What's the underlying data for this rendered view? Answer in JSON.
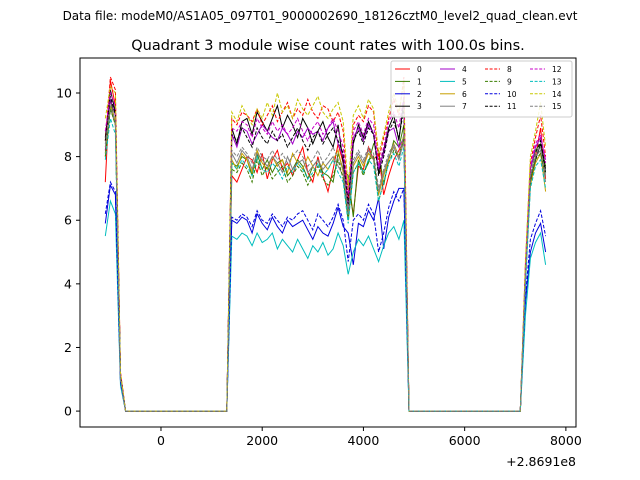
{
  "chart_data": {
    "type": "line",
    "suptitle": "Data file: modeM0/AS1A05_097T01_9000002690_18126cztM0_level2_quad_clean.evt",
    "title": "Quadrant 3 module wise count rates with 100.0s bins.",
    "xlabel": "",
    "ylabel": "",
    "x_offset_label": "+2.8691e8",
    "xlim": [
      -1600,
      8200
    ],
    "ylim": [
      -0.5,
      11.1
    ],
    "xticks": [
      0,
      2000,
      4000,
      6000,
      8000
    ],
    "xtick_labels": [
      "0",
      "2000",
      "4000",
      "6000",
      "8000"
    ],
    "yticks": [
      0,
      2,
      4,
      6,
      8,
      10
    ],
    "ytick_labels": [
      "0",
      "2",
      "4",
      "6",
      "8",
      "10"
    ],
    "legend_loc": "upper right",
    "segments": [
      {
        "x_start": -1100,
        "x_end": -700,
        "n": 5
      },
      {
        "x_start": 1300,
        "x_end": 4900,
        "n": 37
      },
      {
        "x_start": 7100,
        "x_end": 7600,
        "n": 6
      }
    ],
    "gap_from": 1300,
    "gap_to": 4900,
    "series": [
      {
        "name": "0",
        "color": "#ff0000",
        "dash": "solid",
        "peak": [
          7.2,
          10.4,
          9.6,
          1.2,
          0.0
        ],
        "body": [
          0.0,
          7.4,
          7.2,
          7.6,
          8.0,
          7.9,
          7.5,
          8.1,
          7.3,
          7.9,
          8.2,
          7.6,
          7.8,
          7.4,
          7.9,
          8.3,
          7.5,
          7.2,
          8.0,
          7.4,
          6.9,
          7.6,
          8.4,
          7.8,
          7.1,
          6.2,
          7.7,
          7.6,
          8.3,
          7.9,
          8.1,
          6.8,
          7.4,
          7.9,
          8.2,
          8.5,
          0.0
        ],
        "tail": [
          0.0,
          4.2,
          7.2,
          8.0,
          8.9,
          7.3
        ]
      },
      {
        "name": "1",
        "color": "#3a7d00",
        "dash": "solid",
        "peak": [
          8.1,
          9.8,
          9.0,
          1.1,
          0.0
        ],
        "body": [
          0.0,
          7.8,
          7.7,
          8.0,
          7.9,
          7.4,
          8.1,
          7.6,
          7.9,
          7.5,
          7.8,
          7.9,
          7.4,
          7.6,
          7.9,
          7.7,
          7.3,
          7.7,
          7.9,
          7.5,
          7.4,
          7.2,
          8.1,
          7.6,
          7.4,
          6.1,
          7.9,
          7.5,
          7.8,
          8.4,
          8.2,
          7.1,
          7.9,
          8.5,
          8.3,
          9.0,
          0.0
        ],
        "tail": [
          0.0,
          4.4,
          7.6,
          8.2,
          8.4,
          7.7
        ]
      },
      {
        "name": "2",
        "color": "#0000dd",
        "dash": "solid",
        "peak": [
          5.9,
          7.1,
          6.8,
          0.9,
          0.0
        ],
        "body": [
          0.0,
          6.0,
          5.9,
          6.1,
          6.0,
          5.6,
          6.2,
          5.9,
          5.7,
          6.1,
          5.8,
          5.6,
          6.0,
          5.8,
          5.9,
          6.0,
          5.7,
          5.4,
          5.8,
          5.6,
          5.5,
          5.9,
          6.4,
          5.8,
          5.6,
          4.6,
          5.9,
          5.8,
          6.3,
          6.0,
          6.7,
          5.1,
          6.1,
          6.6,
          7.0,
          7.0,
          0.0
        ],
        "tail": [
          0.0,
          3.4,
          5.0,
          5.6,
          5.9,
          5.0
        ]
      },
      {
        "name": "3",
        "color": "#000000",
        "dash": "solid",
        "peak": [
          8.6,
          10.1,
          9.4,
          1.1,
          0.0
        ],
        "body": [
          0.0,
          8.9,
          8.4,
          9.1,
          9.2,
          8.7,
          9.4,
          9.1,
          8.8,
          9.2,
          9.6,
          8.9,
          9.3,
          9.0,
          8.6,
          9.2,
          8.9,
          8.4,
          8.8,
          9.1,
          8.6,
          8.3,
          9.0,
          7.8,
          6.3,
          8.4,
          9.0,
          8.6,
          9.1,
          8.7,
          7.5,
          8.2,
          8.9,
          9.3,
          8.5,
          9.8,
          0.0
        ],
        "tail": [
          0.0,
          4.1,
          7.2,
          7.9,
          8.4,
          7.5
        ]
      },
      {
        "name": "4",
        "color": "#a000c8",
        "dash": "solid",
        "peak": [
          8.2,
          9.8,
          9.3,
          1.1,
          0.0
        ],
        "body": [
          0.0,
          8.7,
          8.3,
          8.9,
          8.8,
          8.4,
          8.7,
          9.0,
          8.8,
          8.6,
          8.5,
          8.9,
          8.7,
          8.4,
          8.8,
          8.6,
          8.9,
          8.7,
          8.8,
          8.5,
          8.9,
          9.1,
          8.4,
          8.0,
          6.4,
          8.6,
          8.9,
          8.5,
          9.0,
          8.7,
          7.6,
          8.1,
          8.8,
          8.9,
          8.3,
          8.6,
          0.0
        ],
        "tail": [
          0.0,
          4.3,
          7.6,
          8.3,
          8.6,
          7.9
        ]
      },
      {
        "name": "5",
        "color": "#00bdbd",
        "dash": "solid",
        "peak": [
          5.5,
          6.6,
          6.2,
          0.8,
          0.0
        ],
        "body": [
          0.0,
          5.5,
          5.4,
          5.6,
          5.5,
          5.2,
          5.6,
          5.3,
          5.4,
          5.6,
          5.1,
          5.4,
          5.2,
          5.0,
          5.4,
          5.1,
          4.8,
          5.2,
          5.0,
          5.3,
          4.9,
          5.1,
          5.6,
          5.2,
          4.3,
          5.0,
          5.4,
          5.2,
          5.5,
          5.1,
          4.7,
          5.2,
          5.6,
          5.8,
          5.4,
          6.0,
          0.0
        ],
        "tail": [
          0.0,
          3.0,
          4.8,
          5.3,
          5.6,
          4.6
        ]
      },
      {
        "name": "6",
        "color": "#c8a000",
        "dash": "solid",
        "peak": [
          8.0,
          9.6,
          9.1,
          1.1,
          0.0
        ],
        "body": [
          0.0,
          7.9,
          7.6,
          8.1,
          7.9,
          7.5,
          8.2,
          7.8,
          7.6,
          8.0,
          7.7,
          7.9,
          7.5,
          8.1,
          7.8,
          7.6,
          8.0,
          7.7,
          7.4,
          7.8,
          7.6,
          7.9,
          8.2,
          7.5,
          6.0,
          7.7,
          8.0,
          7.7,
          8.1,
          7.9,
          6.8,
          7.4,
          7.9,
          8.4,
          8.0,
          8.7,
          0.0
        ],
        "tail": [
          0.0,
          4.2,
          7.1,
          7.8,
          8.1,
          6.9
        ]
      },
      {
        "name": "7",
        "color": "#808080",
        "dash": "solid",
        "peak": [
          8.3,
          9.5,
          9.0,
          1.0,
          0.0
        ],
        "body": [
          0.0,
          8.1,
          7.8,
          8.2,
          8.0,
          7.6,
          8.1,
          7.9,
          7.7,
          8.0,
          7.8,
          7.5,
          8.0,
          7.6,
          7.8,
          7.9,
          7.5,
          7.7,
          7.9,
          7.6,
          7.8,
          8.0,
          7.7,
          7.4,
          6.2,
          7.8,
          8.1,
          7.8,
          8.2,
          7.9,
          6.9,
          7.5,
          8.0,
          8.3,
          7.9,
          8.5,
          0.0
        ],
        "tail": [
          0.0,
          4.0,
          7.3,
          8.0,
          8.2,
          7.2
        ]
      },
      {
        "name": "8",
        "color": "#ff0000",
        "dash": "dashed",
        "peak": [
          8.5,
          10.5,
          10.1,
          1.2,
          0.0
        ],
        "body": [
          0.0,
          9.2,
          9.0,
          9.4,
          9.3,
          9.1,
          9.5,
          9.0,
          9.3,
          9.6,
          9.1,
          9.4,
          9.7,
          9.2,
          9.5,
          9.3,
          9.8,
          9.4,
          9.2,
          9.6,
          9.5,
          9.1,
          9.4,
          8.8,
          6.7,
          9.0,
          9.3,
          9.1,
          9.6,
          9.4,
          7.9,
          8.6,
          9.2,
          9.8,
          9.3,
          10.5,
          0.0
        ],
        "tail": [
          0.0,
          4.6,
          7.8,
          8.6,
          9.3,
          8.0
        ]
      },
      {
        "name": "9",
        "color": "#3a7d00",
        "dash": "dashed",
        "peak": [
          8.0,
          9.5,
          9.0,
          1.0,
          0.0
        ],
        "body": [
          0.0,
          7.6,
          7.5,
          7.8,
          7.6,
          7.2,
          7.9,
          7.4,
          7.7,
          7.3,
          7.5,
          7.7,
          7.2,
          7.4,
          7.7,
          7.5,
          7.1,
          7.4,
          7.7,
          7.3,
          7.1,
          7.4,
          7.9,
          7.3,
          6.0,
          7.5,
          7.8,
          7.4,
          7.9,
          8.0,
          6.6,
          7.2,
          7.8,
          8.2,
          8.0,
          8.6,
          0.0
        ],
        "tail": [
          0.0,
          4.1,
          7.3,
          7.9,
          8.1,
          7.4
        ]
      },
      {
        "name": "10",
        "color": "#0000dd",
        "dash": "dashed",
        "peak": [
          6.2,
          7.2,
          6.9,
          0.9,
          0.0
        ],
        "body": [
          0.0,
          6.1,
          6.0,
          6.2,
          6.1,
          5.8,
          6.3,
          6.0,
          5.9,
          6.2,
          6.0,
          5.8,
          6.1,
          6.0,
          6.2,
          6.3,
          6.0,
          5.7,
          6.2,
          6.0,
          5.8,
          6.1,
          6.5,
          6.0,
          4.7,
          6.0,
          6.2,
          6.0,
          6.5,
          6.2,
          5.0,
          5.6,
          6.4,
          6.9,
          6.6,
          7.0,
          0.0
        ],
        "tail": [
          0.0,
          3.6,
          5.4,
          5.9,
          6.3,
          5.5
        ]
      },
      {
        "name": "11",
        "color": "#000000",
        "dash": "dashed",
        "peak": [
          8.5,
          9.9,
          9.3,
          1.1,
          0.0
        ],
        "body": [
          0.0,
          8.7,
          8.5,
          8.9,
          8.6,
          8.3,
          8.9,
          8.6,
          8.4,
          8.8,
          8.5,
          8.7,
          8.3,
          8.6,
          8.9,
          8.5,
          8.2,
          8.6,
          8.8,
          8.4,
          8.7,
          8.9,
          8.5,
          8.1,
          6.5,
          8.5,
          8.8,
          8.4,
          8.9,
          8.7,
          7.4,
          8.0,
          8.8,
          9.1,
          8.6,
          9.5,
          0.0
        ],
        "tail": [
          0.0,
          4.3,
          7.4,
          8.1,
          8.5,
          7.6
        ]
      },
      {
        "name": "12",
        "color": "#c800c8",
        "dash": "dashed",
        "peak": [
          8.8,
          10.0,
          9.6,
          1.1,
          0.0
        ],
        "body": [
          0.0,
          8.9,
          8.8,
          9.1,
          9.0,
          8.6,
          9.2,
          8.9,
          8.7,
          9.1,
          8.8,
          9.0,
          8.7,
          8.9,
          9.2,
          8.8,
          8.5,
          8.9,
          9.1,
          8.7,
          8.9,
          9.2,
          8.8,
          8.3,
          6.8,
          8.8,
          9.1,
          8.7,
          9.2,
          9.0,
          7.7,
          8.3,
          9.1,
          9.4,
          8.9,
          9.9,
          0.0
        ],
        "tail": [
          0.0,
          4.5,
          7.7,
          8.4,
          8.7,
          7.8
        ]
      },
      {
        "name": "13",
        "color": "#00bdbd",
        "dash": "dashed",
        "peak": [
          7.9,
          9.2,
          8.7,
          1.0,
          0.0
        ],
        "body": [
          0.0,
          7.8,
          7.6,
          7.9,
          7.7,
          7.4,
          8.0,
          7.6,
          7.5,
          7.8,
          7.6,
          7.3,
          7.7,
          7.5,
          7.8,
          7.6,
          7.3,
          7.5,
          7.8,
          7.4,
          7.6,
          7.9,
          7.5,
          7.2,
          5.9,
          7.5,
          7.8,
          7.5,
          7.9,
          7.7,
          6.6,
          7.2,
          7.8,
          8.1,
          7.7,
          8.3,
          0.0
        ],
        "tail": [
          0.0,
          3.9,
          7.0,
          7.7,
          7.9,
          7.0
        ]
      },
      {
        "name": "14",
        "color": "#c8c800",
        "dash": "dashed",
        "peak": [
          9.2,
          10.2,
          10.0,
          1.2,
          0.0
        ],
        "body": [
          0.0,
          9.4,
          9.1,
          9.6,
          9.3,
          9.0,
          9.5,
          9.2,
          9.7,
          9.3,
          10.0,
          9.4,
          9.6,
          9.2,
          9.8,
          9.5,
          9.3,
          9.6,
          9.9,
          9.4,
          9.2,
          9.5,
          9.7,
          9.1,
          7.0,
          9.3,
          9.6,
          9.2,
          9.8,
          9.5,
          8.1,
          8.7,
          9.4,
          10.0,
          9.4,
          10.3,
          0.0
        ],
        "tail": [
          0.0,
          4.7,
          8.0,
          8.8,
          9.7,
          8.3
        ]
      },
      {
        "name": "15",
        "color": "#808080",
        "dash": "dashed",
        "peak": [
          8.4,
          9.6,
          9.1,
          1.0,
          0.0
        ],
        "body": [
          0.0,
          8.2,
          8.0,
          8.3,
          8.1,
          7.8,
          8.3,
          8.0,
          7.9,
          8.2,
          7.9,
          8.1,
          7.8,
          8.0,
          8.2,
          8.0,
          7.7,
          7.9,
          8.2,
          7.8,
          8.0,
          8.3,
          7.9,
          7.6,
          6.3,
          7.9,
          8.2,
          7.9,
          8.3,
          8.1,
          7.0,
          7.6,
          8.1,
          8.4,
          8.0,
          8.7,
          0.0
        ],
        "tail": [
          0.0,
          4.1,
          7.4,
          8.1,
          8.3,
          7.4
        ]
      }
    ]
  }
}
